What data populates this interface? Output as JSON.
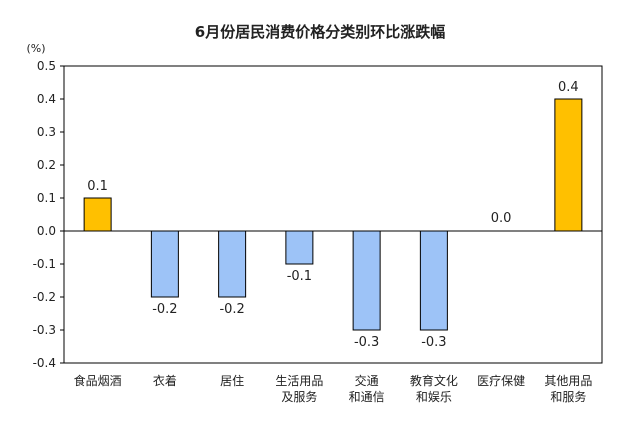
{
  "chart_data": {
    "type": "bar",
    "title": "6月份居民消费价格分类别环比涨跌幅",
    "unit_label": "(%)",
    "ylim": [
      -0.4,
      0.5
    ],
    "yticks": [
      "0.5",
      "0.4",
      "0.3",
      "0.2",
      "0.1",
      "0.0",
      "-0.1",
      "-0.2",
      "-0.3",
      "-0.4"
    ],
    "ytick_values": [
      0.5,
      0.4,
      0.3,
      0.2,
      0.1,
      0.0,
      -0.1,
      -0.2,
      -0.3,
      -0.4
    ],
    "categories": [
      [
        "食品烟酒"
      ],
      [
        "衣着"
      ],
      [
        "居住"
      ],
      [
        "生活用品",
        "及服务"
      ],
      [
        "交通",
        "和通信"
      ],
      [
        "教育文化",
        "和娱乐"
      ],
      [
        "医疗保健"
      ],
      [
        "其他用品",
        "和服务"
      ]
    ],
    "values": [
      0.1,
      -0.2,
      -0.2,
      -0.1,
      -0.3,
      -0.3,
      0.0,
      0.4
    ],
    "value_labels": [
      "0.1",
      "-0.2",
      "-0.2",
      "-0.1",
      "-0.3",
      "-0.3",
      "0.0",
      "0.4"
    ],
    "grid": false,
    "colors": {
      "positive": "#FFC000",
      "negative": "#9DC3F7",
      "bar_stroke": "#000000",
      "axis": "#000000"
    }
  }
}
